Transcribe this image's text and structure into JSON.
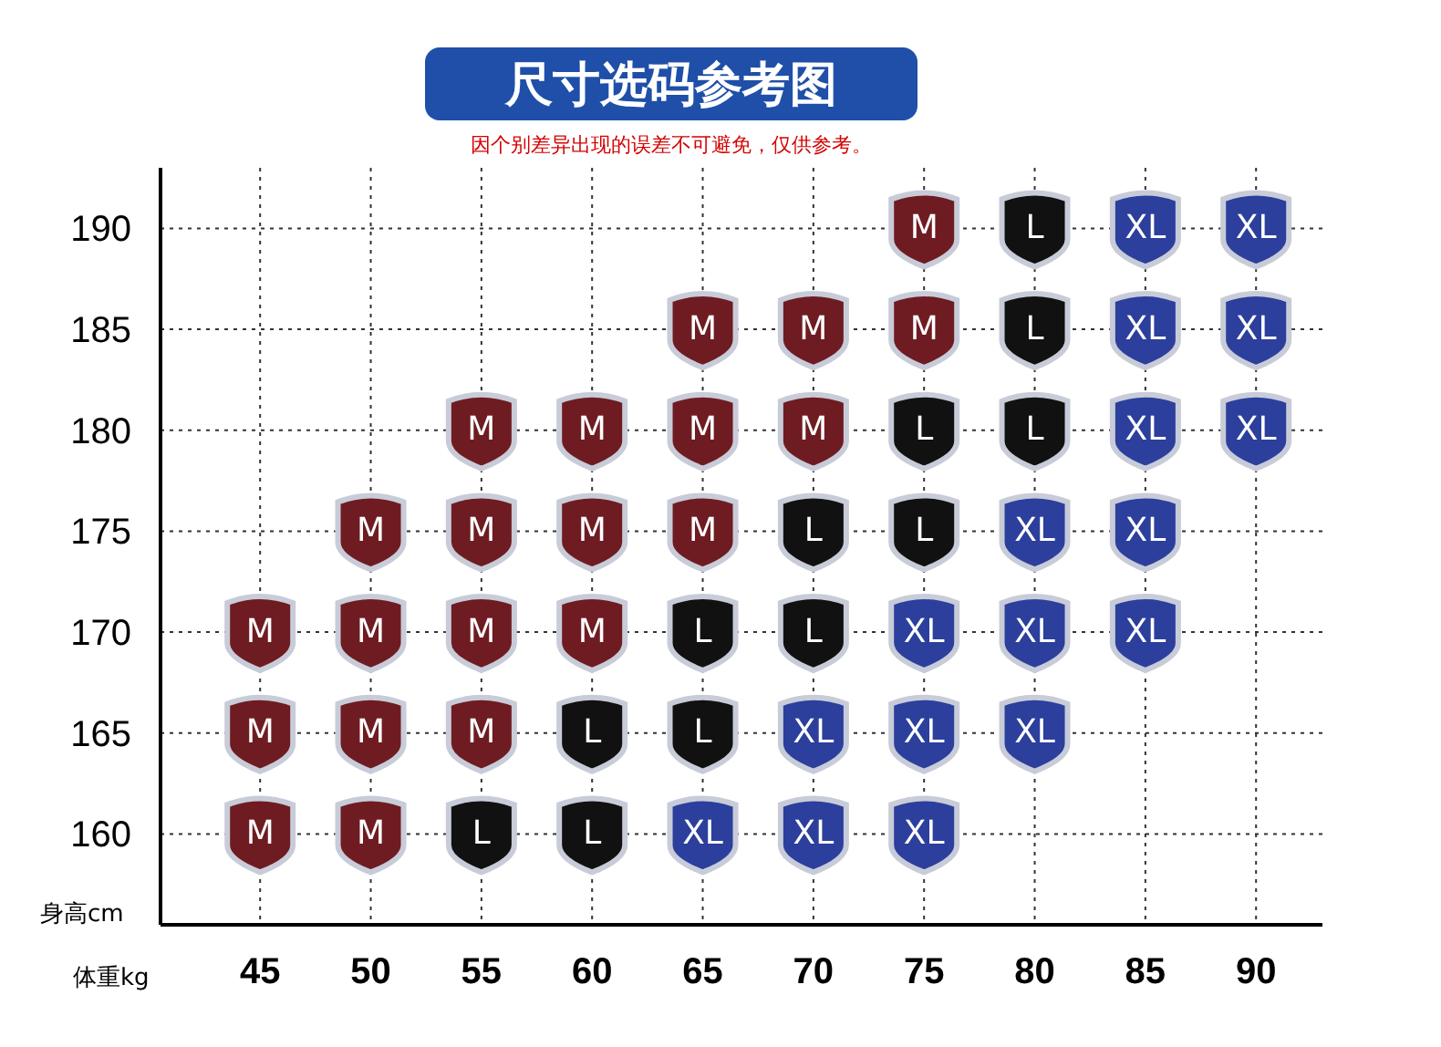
{
  "chart_data": {
    "type": "scatter",
    "title": "尺寸选码参考图",
    "subtitle": "因个别差异出现的误差不可避免，仅供参考。",
    "xlabel": "体重kg",
    "ylabel": "身高cm",
    "xlim": [
      40.5,
      93
    ],
    "xticks": [
      45,
      50,
      55,
      60,
      65,
      70,
      75,
      80,
      85,
      90
    ],
    "ylim": [
      155.5,
      193
    ],
    "yticks": [
      160,
      165,
      170,
      175,
      180,
      185,
      190
    ],
    "grid": true,
    "series": [
      {
        "name": "M",
        "color": "#6e1c22",
        "x": [
          75,
          65,
          70,
          75,
          55,
          60,
          65,
          70,
          50,
          55,
          60,
          65,
          45,
          50,
          55,
          60,
          45,
          50,
          55,
          45,
          50
        ],
        "values": [
          190,
          185,
          185,
          185,
          180,
          180,
          180,
          180,
          175,
          175,
          175,
          175,
          170,
          170,
          170,
          170,
          165,
          165,
          165,
          160,
          160
        ]
      },
      {
        "name": "L",
        "color": "#111111",
        "x": [
          80,
          80,
          75,
          80,
          70,
          75,
          65,
          70,
          60,
          65,
          55,
          60
        ],
        "values": [
          190,
          185,
          180,
          180,
          175,
          175,
          170,
          170,
          165,
          165,
          160,
          160
        ]
      },
      {
        "name": "XL",
        "color": "#2c3f9c",
        "x": [
          85,
          90,
          85,
          90,
          85,
          90,
          80,
          85,
          75,
          80,
          85,
          70,
          75,
          80,
          65,
          70,
          75
        ],
        "values": [
          190,
          190,
          185,
          185,
          180,
          180,
          175,
          175,
          170,
          170,
          170,
          165,
          165,
          165,
          160,
          160,
          160
        ]
      }
    ]
  }
}
